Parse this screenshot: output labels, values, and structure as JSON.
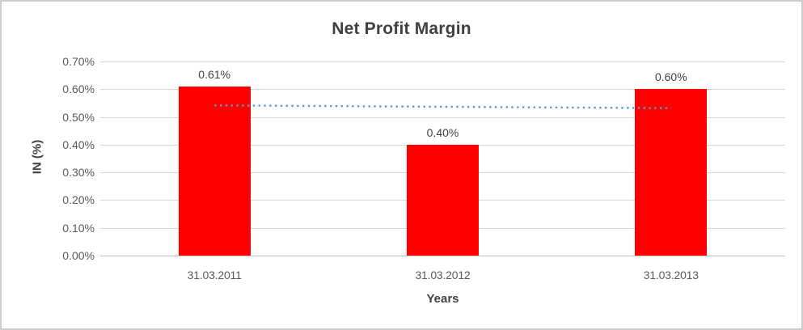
{
  "chart_data": {
    "type": "bar",
    "title": "Net Profit Margin",
    "xlabel": "Years",
    "ylabel": "IN (%)",
    "categories": [
      "31.03.2011",
      "31.03.2012",
      "31.03.2013"
    ],
    "values": [
      0.61,
      0.4,
      0.6
    ],
    "data_labels": [
      "0.61%",
      "0.40%",
      "0.60%"
    ],
    "unit": "%",
    "ylim": [
      0.0,
      0.7
    ],
    "ytick_step": 0.1,
    "ytick_labels": [
      "0.70%",
      "0.60%",
      "0.50%",
      "0.40%",
      "0.30%",
      "0.20%",
      "0.10%",
      "0.00%"
    ],
    "grid": true,
    "legend": "none",
    "trendline": {
      "type": "linear",
      "style": "dotted",
      "color": "#5b9bd5",
      "start_value": 0.5417,
      "end_value": 0.5317,
      "spans": "first bar center to last bar center, drawn over bars"
    },
    "style": {
      "bar_color": "#ff0000",
      "gridline_color": "#d9d9d9",
      "axis_line_color": "#bfbfbf",
      "title_color": "#404040",
      "tick_label_color": "#595959",
      "frame_border_color": "#cccccc"
    }
  }
}
